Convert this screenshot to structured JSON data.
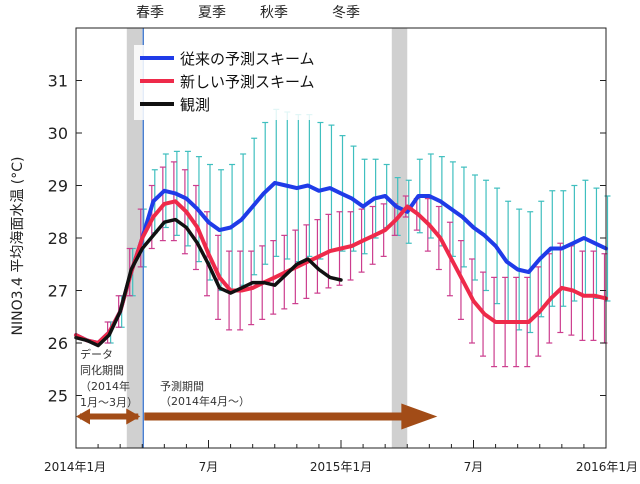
{
  "seasons": [
    "春季",
    "夏季",
    "秋季",
    "冬季"
  ],
  "annotations": {
    "assim": [
      "データ",
      "同化期間",
      "（2014年",
      "1月～3月）"
    ],
    "forecast": [
      "予測期間",
      "（2014年4月～）"
    ]
  },
  "colors": {
    "old": "#1f3be8",
    "old_err": "#3fbfbf",
    "new": "#ee2a4a",
    "new_err": "#cc3d8e",
    "obs": "#111111",
    "shade": "#d0d0d0",
    "arrow": "#a24c17",
    "marker": "#4a7fd0"
  },
  "chart_data": {
    "type": "line",
    "ylabel": "NINO3.4 平均海面水温 (°C)",
    "ylim": [
      24,
      32
    ],
    "yticks": [
      25,
      26,
      27,
      28,
      29,
      30,
      31
    ],
    "xlim": [
      0,
      24
    ],
    "xtick_labels": [
      {
        "x": 0,
        "label": "2014年1月"
      },
      {
        "x": 6,
        "label": "7月"
      },
      {
        "x": 12,
        "label": "2015年1月"
      },
      {
        "x": 18,
        "label": "7月"
      },
      {
        "x": 24,
        "label": "2016年1月"
      }
    ],
    "shaded_periods": [
      [
        2.3,
        3.0
      ],
      [
        14.3,
        15.0
      ]
    ],
    "forecast_start": 3.0,
    "legend": [
      "従来の予測スキーム",
      "新しい予測スキーム",
      "観測"
    ],
    "legend_position": "top",
    "series": [
      {
        "name": "従来の予測スキーム",
        "x": [
          0,
          0.5,
          1,
          1.5,
          2,
          2.5,
          3,
          3.5,
          4,
          4.5,
          5,
          5.5,
          6,
          6.5,
          7,
          7.5,
          8,
          8.5,
          9,
          9.5,
          10,
          10.5,
          11,
          11.5,
          12,
          12.5,
          13,
          13.5,
          14,
          14.5,
          15,
          15.5,
          16,
          16.5,
          17,
          17.5,
          18,
          18.5,
          19,
          19.5,
          20,
          20.5,
          21,
          21.5,
          22,
          22.5,
          23,
          23.5,
          24
        ],
        "values": [
          26.15,
          26.05,
          26.0,
          26.2,
          26.6,
          27.35,
          28.0,
          28.7,
          28.9,
          28.85,
          28.75,
          28.55,
          28.3,
          28.15,
          28.2,
          28.35,
          28.6,
          28.85,
          29.05,
          29.0,
          28.95,
          29.0,
          28.9,
          28.95,
          28.85,
          28.75,
          28.6,
          28.75,
          28.8,
          28.6,
          28.5,
          28.8,
          28.8,
          28.7,
          28.55,
          28.4,
          28.2,
          28.05,
          27.85,
          27.55,
          27.4,
          27.35,
          27.6,
          27.8,
          27.8,
          27.9,
          28.0,
          27.9,
          27.8
        ],
        "error_halfwidth": [
          0.05,
          0.1,
          0.1,
          0.2,
          0.3,
          0.45,
          0.55,
          0.6,
          0.7,
          0.8,
          0.9,
          1.0,
          1.1,
          1.15,
          1.2,
          1.25,
          1.3,
          1.35,
          1.4,
          1.4,
          1.4,
          1.35,
          1.3,
          1.2,
          1.1,
          1.0,
          0.9,
          0.75,
          0.6,
          0.55,
          0.6,
          0.7,
          0.8,
          0.85,
          0.9,
          0.95,
          1.0,
          1.05,
          1.1,
          1.15,
          1.15,
          1.15,
          1.1,
          1.1,
          1.1,
          1.1,
          1.1,
          1.05,
          1.0
        ]
      },
      {
        "name": "新しい予測スキーム",
        "x": [
          0,
          0.5,
          1,
          1.5,
          2,
          2.5,
          3,
          3.5,
          4,
          4.5,
          5,
          5.5,
          6,
          6.5,
          7,
          7.5,
          8,
          8.5,
          9,
          9.5,
          10,
          10.5,
          11,
          11.5,
          12,
          12.5,
          13,
          13.5,
          14,
          14.5,
          15,
          15.5,
          16,
          16.5,
          17,
          17.5,
          18,
          18.5,
          19,
          19.5,
          20,
          20.5,
          21,
          21.5,
          22,
          22.5,
          23,
          23.5,
          24
        ],
        "values": [
          26.15,
          26.05,
          26.0,
          26.2,
          26.6,
          27.35,
          28.0,
          28.4,
          28.65,
          28.7,
          28.5,
          28.2,
          27.7,
          27.25,
          27.0,
          27.0,
          27.05,
          27.15,
          27.25,
          27.35,
          27.45,
          27.55,
          27.65,
          27.75,
          27.8,
          27.85,
          27.95,
          28.05,
          28.15,
          28.35,
          28.6,
          28.45,
          28.25,
          28.0,
          27.6,
          27.2,
          26.8,
          26.55,
          26.4,
          26.4,
          26.4,
          26.4,
          26.6,
          26.85,
          27.05,
          27.0,
          26.9,
          26.9,
          26.85
        ],
        "error_halfwidth": [
          0.05,
          0.1,
          0.1,
          0.2,
          0.3,
          0.45,
          0.55,
          0.6,
          0.7,
          0.75,
          0.8,
          0.8,
          0.8,
          0.8,
          0.75,
          0.75,
          0.7,
          0.7,
          0.7,
          0.7,
          0.7,
          0.7,
          0.7,
          0.7,
          0.7,
          0.65,
          0.6,
          0.55,
          0.5,
          0.3,
          0.2,
          0.3,
          0.5,
          0.6,
          0.7,
          0.75,
          0.8,
          0.8,
          0.85,
          0.85,
          0.85,
          0.85,
          0.85,
          0.85,
          0.85,
          0.85,
          0.85,
          0.85,
          0.85
        ]
      },
      {
        "name": "観測",
        "x": [
          0,
          0.5,
          1,
          1.5,
          2,
          2.5,
          3,
          3.5,
          4,
          4.5,
          5,
          5.5,
          6,
          6.5,
          7,
          7.5,
          8,
          8.5,
          9,
          9.5,
          10,
          10.5,
          11,
          11.5,
          12
        ],
        "values": [
          26.1,
          26.05,
          25.95,
          26.15,
          26.6,
          27.4,
          27.8,
          28.05,
          28.3,
          28.35,
          28.2,
          27.9,
          27.5,
          27.05,
          26.95,
          27.05,
          27.15,
          27.15,
          27.1,
          27.3,
          27.5,
          27.6,
          27.4,
          27.25,
          27.2
        ]
      }
    ]
  }
}
